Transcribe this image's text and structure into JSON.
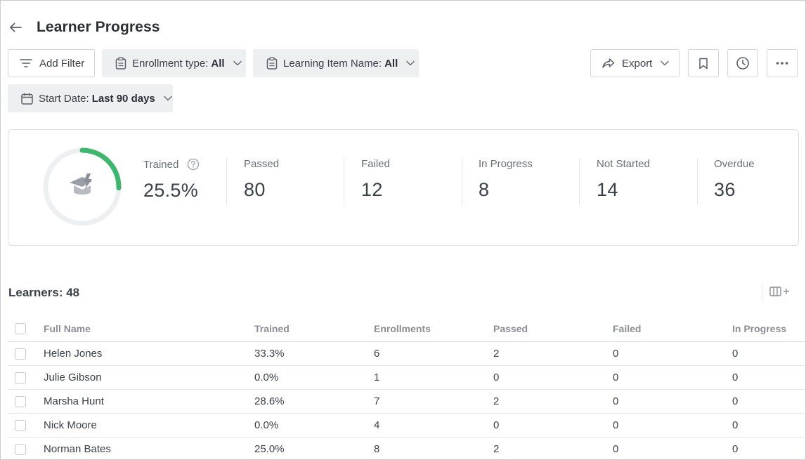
{
  "page": {
    "title": "Learner Progress"
  },
  "toolbar": {
    "add_filter": "Add Filter",
    "enrollment_label": "Enrollment type:",
    "enrollment_value": "All",
    "learning_item_label": "Learning Item Name:",
    "learning_item_value": "All",
    "start_date_label": "Start Date:",
    "start_date_value": "Last 90 days",
    "export": "Export"
  },
  "summary": {
    "trained_fraction": 0.255,
    "accent_color": "#3cb86c",
    "stats": [
      {
        "label": "Trained",
        "value": "25.5%"
      },
      {
        "label": "Passed",
        "value": "80"
      },
      {
        "label": "Failed",
        "value": "12"
      },
      {
        "label": "In Progress",
        "value": "8"
      },
      {
        "label": "Not Started",
        "value": "14"
      },
      {
        "label": "Overdue",
        "value": "36"
      }
    ]
  },
  "learners": {
    "title": "Learners: 48",
    "columns": [
      "Full Name",
      "Trained",
      "Enrollments",
      "Passed",
      "Failed",
      "In Progress"
    ],
    "rows": [
      [
        "Helen Jones",
        "33.3%",
        "6",
        "2",
        "0",
        "0"
      ],
      [
        "Julie Gibson",
        "0.0%",
        "1",
        "0",
        "0",
        "0"
      ],
      [
        "Marsha Hunt",
        "28.6%",
        "7",
        "2",
        "0",
        "0"
      ],
      [
        "Nick Moore",
        "0.0%",
        "4",
        "0",
        "0",
        "0"
      ],
      [
        "Norman Bates",
        "25.0%",
        "8",
        "2",
        "0",
        "0"
      ]
    ]
  }
}
